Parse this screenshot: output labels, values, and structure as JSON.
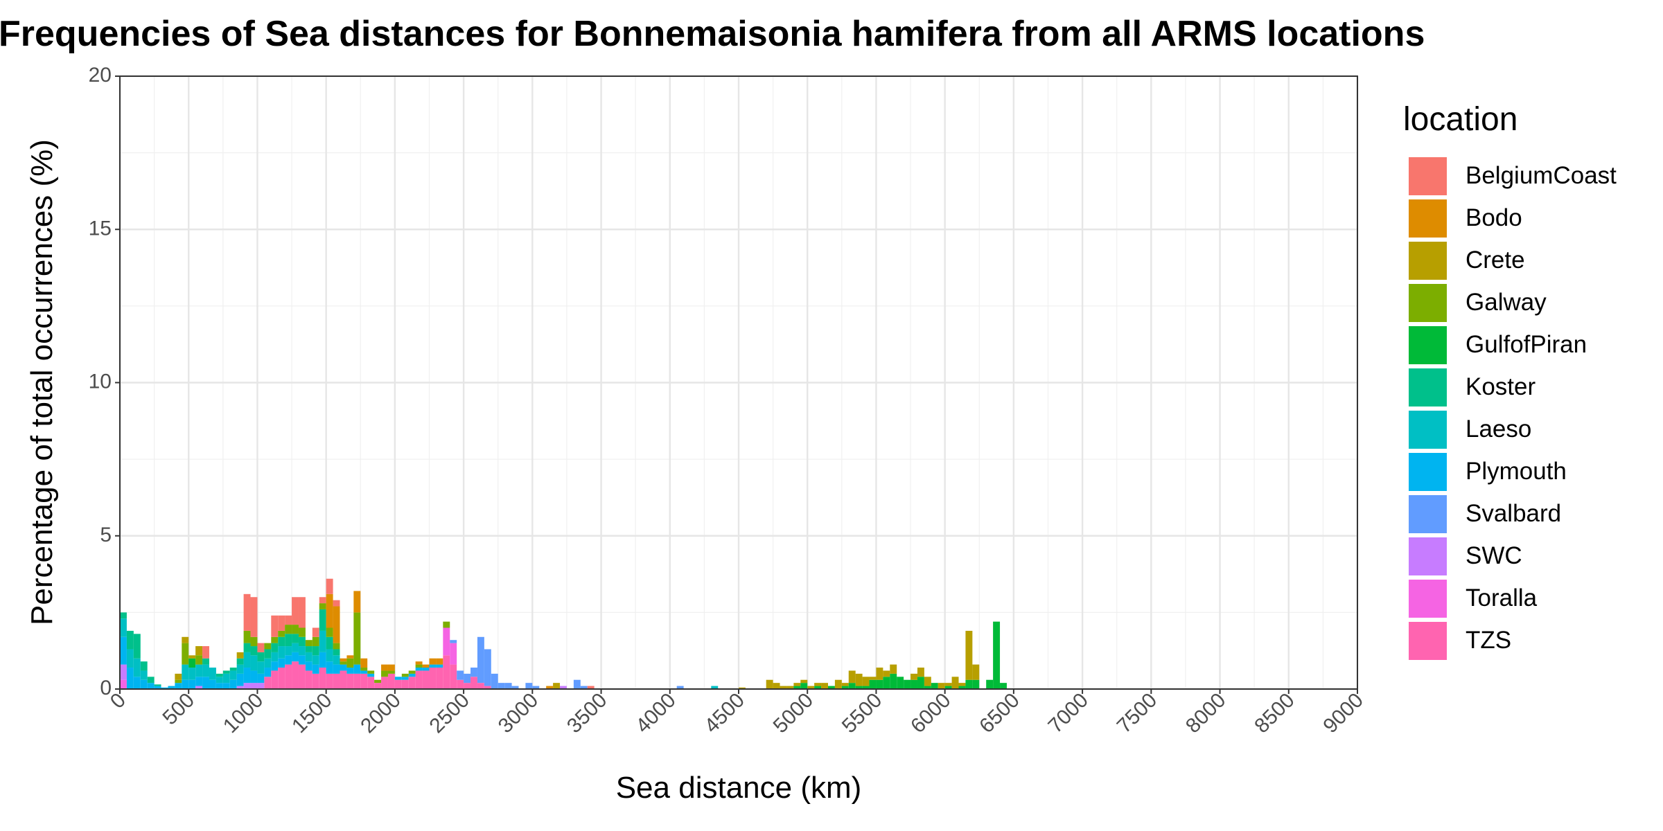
{
  "chart_data": {
    "type": "bar",
    "subtype": "stacked-histogram",
    "title": "Frequencies of Sea distances for Bonnemaisonia hamifera from all ARMS locations",
    "xlabel": "Sea distance (km)",
    "ylabel": "Percentage of total occurrences (%)",
    "xlim": [
      0,
      9000
    ],
    "ylim": [
      0,
      20
    ],
    "x_ticks": [
      0,
      500,
      1000,
      1500,
      2000,
      2500,
      3000,
      3500,
      4000,
      4500,
      5000,
      5500,
      6000,
      6500,
      7000,
      7500,
      8000,
      8500,
      9000
    ],
    "y_ticks": [
      0,
      5,
      10,
      15,
      20
    ],
    "bin_width_km": 50,
    "grid": true,
    "legend": {
      "title": "location",
      "position": "right",
      "entries": [
        {
          "name": "BelgiumCoast",
          "color": "#F8766D"
        },
        {
          "name": "Bodo",
          "color": "#DE8C00"
        },
        {
          "name": "Crete",
          "color": "#B79F00"
        },
        {
          "name": "Galway",
          "color": "#7CAE00"
        },
        {
          "name": "GulfofPiran",
          "color": "#00BA38"
        },
        {
          "name": "Koster",
          "color": "#00C08B"
        },
        {
          "name": "Laeso",
          "color": "#00BFC4"
        },
        {
          "name": "Plymouth",
          "color": "#00B4F0"
        },
        {
          "name": "Svalbard",
          "color": "#619CFF"
        },
        {
          "name": "SWC",
          "color": "#C77CFF"
        },
        {
          "name": "Toralla",
          "color": "#F564E3"
        },
        {
          "name": "TZS",
          "color": "#FF64B0"
        }
      ]
    },
    "bars": [
      {
        "x": 0,
        "segments": {
          "SWC": 0.5,
          "Toralla": 0.3,
          "Plymouth": 0.9,
          "Laeso": 0.6,
          "Koster": 0.2
        }
      },
      {
        "x": 50,
        "segments": {
          "Plymouth": 0.7,
          "Laeso": 0.6,
          "Koster": 0.6
        }
      },
      {
        "x": 100,
        "segments": {
          "Plymouth": 0.4,
          "Laeso": 0.6,
          "Koster": 0.8
        }
      },
      {
        "x": 150,
        "segments": {
          "Plymouth": 0.3,
          "Laeso": 0.3,
          "Koster": 0.3
        }
      },
      {
        "x": 200,
        "segments": {
          "Plymouth": 0.2,
          "Koster": 0.2
        }
      },
      {
        "x": 250,
        "segments": {
          "Plymouth": 0.1,
          "Koster": 0.05
        }
      },
      {
        "x": 300,
        "segments": {
          "Plymouth": 0.05
        }
      },
      {
        "x": 350,
        "segments": {
          "Plymouth": 0.1
        }
      },
      {
        "x": 400,
        "segments": {
          "Plymouth": 0.2,
          "Galway": 0.1,
          "Crete": 0.2
        }
      },
      {
        "x": 450,
        "segments": {
          "Plymouth": 0.3,
          "Laeso": 0.5,
          "Galway": 0.7,
          "Crete": 0.2
        }
      },
      {
        "x": 500,
        "segments": {
          "Plymouth": 0.3,
          "Laeso": 0.4,
          "GulfofPiran": 0.3,
          "Crete": 0.1
        }
      },
      {
        "x": 550,
        "segments": {
          "SWC": 0.1,
          "Plymouth": 0.3,
          "Laeso": 0.4,
          "Galway": 0.3,
          "Crete": 0.3
        }
      },
      {
        "x": 600,
        "segments": {
          "Plymouth": 0.4,
          "Laeso": 0.4,
          "Koster": 0.2,
          "BelgiumCoast": 0.4
        }
      },
      {
        "x": 650,
        "segments": {
          "Plymouth": 0.3,
          "Laeso": 0.4
        }
      },
      {
        "x": 700,
        "segments": {
          "Plymouth": 0.2,
          "Laeso": 0.2,
          "Koster": 0.1
        }
      },
      {
        "x": 750,
        "segments": {
          "Plymouth": 0.2,
          "Laeso": 0.3,
          "Koster": 0.1
        }
      },
      {
        "x": 800,
        "segments": {
          "Plymouth": 0.3,
          "Laeso": 0.3,
          "Koster": 0.1
        }
      },
      {
        "x": 850,
        "segments": {
          "SWC": 0.1,
          "Plymouth": 0.4,
          "Laeso": 0.3,
          "Koster": 0.2,
          "Crete": 0.2
        }
      },
      {
        "x": 900,
        "segments": {
          "SWC": 0.2,
          "Plymouth": 0.5,
          "Laeso": 0.5,
          "Koster": 0.3,
          "Galway": 0.4,
          "BelgiumCoast": 1.2
        }
      },
      {
        "x": 950,
        "segments": {
          "SWC": 0.2,
          "Plymouth": 0.4,
          "Laeso": 0.5,
          "Koster": 0.3,
          "Galway": 0.3,
          "BelgiumCoast": 1.3
        }
      },
      {
        "x": 1000,
        "segments": {
          "SWC": 0.2,
          "Plymouth": 0.3,
          "Laeso": 0.4,
          "Koster": 0.3,
          "BelgiumCoast": 0.3
        }
      },
      {
        "x": 1050,
        "segments": {
          "TZS": 0.4,
          "Plymouth": 0.3,
          "Laeso": 0.3,
          "Koster": 0.3,
          "Galway": 0.2
        }
      },
      {
        "x": 1100,
        "segments": {
          "TZS": 0.6,
          "Plymouth": 0.3,
          "Laeso": 0.3,
          "Koster": 0.3,
          "Galway": 0.2,
          "BelgiumCoast": 0.7
        }
      },
      {
        "x": 1150,
        "segments": {
          "TZS": 0.7,
          "Plymouth": 0.3,
          "Laeso": 0.4,
          "Koster": 0.3,
          "Galway": 0.2,
          "BelgiumCoast": 0.5
        }
      },
      {
        "x": 1200,
        "segments": {
          "TZS": 0.8,
          "Plymouth": 0.3,
          "Laeso": 0.3,
          "Koster": 0.4,
          "Galway": 0.3,
          "BelgiumCoast": 0.3
        }
      },
      {
        "x": 1250,
        "segments": {
          "TZS": 0.9,
          "Plymouth": 0.3,
          "Laeso": 0.3,
          "Koster": 0.3,
          "Galway": 0.3,
          "BelgiumCoast": 0.9
        }
      },
      {
        "x": 1300,
        "segments": {
          "TZS": 0.8,
          "Plymouth": 0.3,
          "Laeso": 0.3,
          "Koster": 0.3,
          "Galway": 0.3,
          "BelgiumCoast": 1.0
        }
      },
      {
        "x": 1350,
        "segments": {
          "TZS": 0.6,
          "Plymouth": 0.3,
          "Laeso": 0.3,
          "Koster": 0.2,
          "Galway": 0.2
        }
      },
      {
        "x": 1400,
        "segments": {
          "TZS": 0.5,
          "Plymouth": 0.3,
          "Laeso": 0.3,
          "Koster": 0.3,
          "Galway": 0.3,
          "BelgiumCoast": 0.3
        }
      },
      {
        "x": 1450,
        "segments": {
          "TZS": 0.7,
          "Plymouth": 0.5,
          "Laeso": 0.7,
          "Koster": 0.7,
          "Galway": 0.2,
          "BelgiumCoast": 0.2
        }
      },
      {
        "x": 1500,
        "segments": {
          "TZS": 0.5,
          "Plymouth": 0.4,
          "Laeso": 0.4,
          "Koster": 0.4,
          "Galway": 0.3,
          "BelgiumCoast": 0.5,
          "Bodo": 1.1
        }
      },
      {
        "x": 1550,
        "segments": {
          "TZS": 0.5,
          "Plymouth": 0.3,
          "Laeso": 0.3,
          "Koster": 0.2,
          "Galway": 0.2,
          "BelgiumCoast": 0.2,
          "Bodo": 1.2
        }
      },
      {
        "x": 1600,
        "segments": {
          "TZS": 0.6,
          "Plymouth": 0.2,
          "Galway": 0.1,
          "Bodo": 0.1
        }
      },
      {
        "x": 1650,
        "segments": {
          "TZS": 0.5,
          "Plymouth": 0.2,
          "Galway": 0.3,
          "Bodo": 0.1
        }
      },
      {
        "x": 1700,
        "segments": {
          "TZS": 0.5,
          "Plymouth": 0.3,
          "Galway": 1.7,
          "Bodo": 0.7
        }
      },
      {
        "x": 1750,
        "segments": {
          "TZS": 0.5,
          "Plymouth": 0.1,
          "Galway": 0.1,
          "Bodo": 0.3
        }
      },
      {
        "x": 1800,
        "segments": {
          "TZS": 0.4,
          "Plymouth": 0.1,
          "Galway": 0.1
        }
      },
      {
        "x": 1850,
        "segments": {
          "TZS": 0.2,
          "Galway": 0.1
        }
      },
      {
        "x": 1900,
        "segments": {
          "TZS": 0.4,
          "Galway": 0.2,
          "Bodo": 0.2
        }
      },
      {
        "x": 1950,
        "segments": {
          "TZS": 0.5,
          "Galway": 0.1,
          "Bodo": 0.2
        }
      },
      {
        "x": 2000,
        "segments": {
          "TZS": 0.3,
          "Plymouth": 0.1
        }
      },
      {
        "x": 2050,
        "segments": {
          "TZS": 0.3,
          "Plymouth": 0.1,
          "Galway": 0.1
        }
      },
      {
        "x": 2100,
        "segments": {
          "TZS": 0.4,
          "Plymouth": 0.1,
          "Galway": 0.1
        }
      },
      {
        "x": 2150,
        "segments": {
          "TZS": 0.6,
          "Plymouth": 0.1,
          "Galway": 0.1,
          "Bodo": 0.1
        }
      },
      {
        "x": 2200,
        "segments": {
          "TZS": 0.6,
          "Plymouth": 0.1,
          "Bodo": 0.1
        }
      },
      {
        "x": 2250,
        "segments": {
          "TZS": 0.7,
          "Plymouth": 0.1,
          "Bodo": 0.2
        }
      },
      {
        "x": 2300,
        "segments": {
          "TZS": 0.7,
          "Plymouth": 0.1,
          "Bodo": 0.2
        }
      },
      {
        "x": 2350,
        "segments": {
          "TZS": 1.1,
          "Toralla": 0.9,
          "Galway": 0.2
        }
      },
      {
        "x": 2400,
        "segments": {
          "TZS": 0.8,
          "Toralla": 0.7,
          "Svalbard": 0.1
        }
      },
      {
        "x": 2450,
        "segments": {
          "TZS": 0.3,
          "Svalbard": 0.3
        }
      },
      {
        "x": 2500,
        "segments": {
          "TZS": 0.2,
          "Svalbard": 0.3
        }
      },
      {
        "x": 2550,
        "segments": {
          "TZS": 0.4,
          "Svalbard": 0.3
        }
      },
      {
        "x": 2600,
        "segments": {
          "TZS": 0.2,
          "Svalbard": 1.5
        }
      },
      {
        "x": 2650,
        "segments": {
          "TZS": 0.1,
          "Svalbard": 1.2
        }
      },
      {
        "x": 2700,
        "segments": {
          "Svalbard": 0.5
        }
      },
      {
        "x": 2750,
        "segments": {
          "Svalbard": 0.2
        }
      },
      {
        "x": 2800,
        "segments": {
          "Svalbard": 0.2
        }
      },
      {
        "x": 2850,
        "segments": {
          "Svalbard": 0.1
        }
      },
      {
        "x": 2950,
        "segments": {
          "Svalbard": 0.2
        }
      },
      {
        "x": 3000,
        "segments": {
          "Svalbard": 0.1
        }
      },
      {
        "x": 3100,
        "segments": {
          "Bodo": 0.1
        }
      },
      {
        "x": 3150,
        "segments": {
          "Crete": 0.2
        }
      },
      {
        "x": 3200,
        "segments": {
          "SWC": 0.1
        }
      },
      {
        "x": 3300,
        "segments": {
          "Svalbard": 0.3
        }
      },
      {
        "x": 3350,
        "segments": {
          "Svalbard": 0.1
        }
      },
      {
        "x": 3400,
        "segments": {
          "BelgiumCoast": 0.1
        }
      },
      {
        "x": 4050,
        "segments": {
          "Svalbard": 0.1
        }
      },
      {
        "x": 4300,
        "segments": {
          "Laeso": 0.1
        }
      },
      {
        "x": 4500,
        "segments": {
          "Crete": 0.05
        }
      },
      {
        "x": 4700,
        "segments": {
          "Crete": 0.3
        }
      },
      {
        "x": 4750,
        "segments": {
          "Crete": 0.2
        }
      },
      {
        "x": 4800,
        "segments": {
          "Crete": 0.1
        }
      },
      {
        "x": 4850,
        "segments": {
          "Crete": 0.1
        }
      },
      {
        "x": 4900,
        "segments": {
          "GulfofPiran": 0.1,
          "Crete": 0.1
        }
      },
      {
        "x": 4950,
        "segments": {
          "GulfofPiran": 0.2,
          "Crete": 0.1
        }
      },
      {
        "x": 5000,
        "segments": {
          "Crete": 0.1
        }
      },
      {
        "x": 5050,
        "segments": {
          "GulfofPiran": 0.1,
          "Crete": 0.1
        }
      },
      {
        "x": 5100,
        "segments": {
          "Crete": 0.2
        }
      },
      {
        "x": 5150,
        "segments": {
          "GulfofPiran": 0.1
        }
      },
      {
        "x": 5200,
        "segments": {
          "Crete": 0.3
        }
      },
      {
        "x": 5250,
        "segments": {
          "GulfofPiran": 0.1,
          "Crete": 0.1
        }
      },
      {
        "x": 5300,
        "segments": {
          "GulfofPiran": 0.2,
          "Crete": 0.4
        }
      },
      {
        "x": 5350,
        "segments": {
          "GulfofPiran": 0.1,
          "Crete": 0.4
        }
      },
      {
        "x": 5400,
        "segments": {
          "GulfofPiran": 0.1,
          "Crete": 0.3
        }
      },
      {
        "x": 5450,
        "segments": {
          "GulfofPiran": 0.3,
          "Crete": 0.1
        }
      },
      {
        "x": 5500,
        "segments": {
          "GulfofPiran": 0.3,
          "Crete": 0.4
        }
      },
      {
        "x": 5550,
        "segments": {
          "GulfofPiran": 0.4,
          "Crete": 0.2
        }
      },
      {
        "x": 5600,
        "segments": {
          "GulfofPiran": 0.5,
          "Crete": 0.3
        }
      },
      {
        "x": 5650,
        "segments": {
          "GulfofPiran": 0.4
        }
      },
      {
        "x": 5700,
        "segments": {
          "GulfofPiran": 0.3
        }
      },
      {
        "x": 5750,
        "segments": {
          "GulfofPiran": 0.3,
          "Crete": 0.2
        }
      },
      {
        "x": 5800,
        "segments": {
          "GulfofPiran": 0.4,
          "Crete": 0.3
        }
      },
      {
        "x": 5850,
        "segments": {
          "GulfofPiran": 0.1,
          "Crete": 0.3
        }
      },
      {
        "x": 5900,
        "segments": {
          "GulfofPiran": 0.2
        }
      },
      {
        "x": 5950,
        "segments": {
          "Crete": 0.2
        }
      },
      {
        "x": 6000,
        "segments": {
          "GulfofPiran": 0.1,
          "Crete": 0.1
        }
      },
      {
        "x": 6050,
        "segments": {
          "Crete": 0.4
        }
      },
      {
        "x": 6100,
        "segments": {
          "GulfofPiran": 0.1,
          "Crete": 0.1
        }
      },
      {
        "x": 6150,
        "segments": {
          "GulfofPiran": 0.3,
          "Crete": 1.6
        }
      },
      {
        "x": 6200,
        "segments": {
          "GulfofPiran": 0.3,
          "Crete": 0.5
        }
      },
      {
        "x": 6300,
        "segments": {
          "GulfofPiran": 0.3
        }
      },
      {
        "x": 6350,
        "segments": {
          "GulfofPiran": 2.2
        }
      },
      {
        "x": 6400,
        "segments": {
          "GulfofPiran": 0.2
        }
      }
    ]
  }
}
